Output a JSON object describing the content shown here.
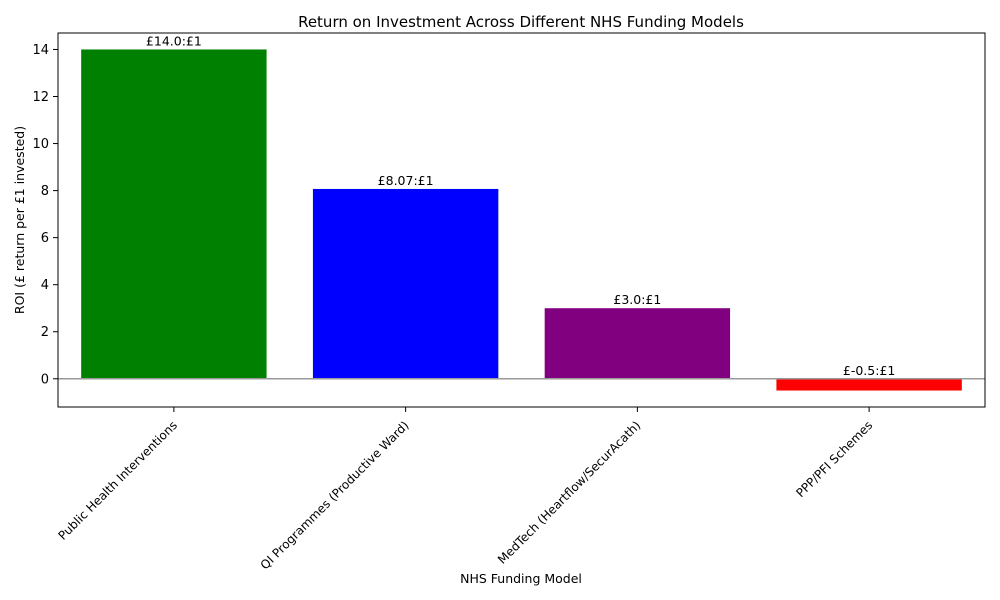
{
  "chart_data": {
    "type": "bar",
    "title": "Return on Investment Across Different NHS Funding Models",
    "xlabel": "NHS Funding Model",
    "ylabel": "ROI (£ return per £1 invested)",
    "categories": [
      "Public Health Interventions",
      "QI Programmes (Productive Ward)",
      "MedTech (Heartflow/SecurAcath)",
      "PPP/PFI Schemes"
    ],
    "values": [
      14.0,
      8.07,
      3.0,
      -0.5
    ],
    "data_labels": [
      "£14.0:£1",
      "£8.07:£1",
      "£3.0:£1",
      "£-0.5:£1"
    ],
    "colors": [
      "#008000",
      "#0000ff",
      "#800080",
      "#ff0000"
    ],
    "ylim": [
      -1.2,
      14.7
    ],
    "yticks": [
      0,
      2,
      4,
      6,
      8,
      10,
      12,
      14
    ],
    "ytick_labels": [
      "0",
      "2",
      "4",
      "6",
      "8",
      "10",
      "12",
      "14"
    ],
    "zero_line": true,
    "zero_line_color": "#999999",
    "grid": false,
    "legend": "none"
  }
}
